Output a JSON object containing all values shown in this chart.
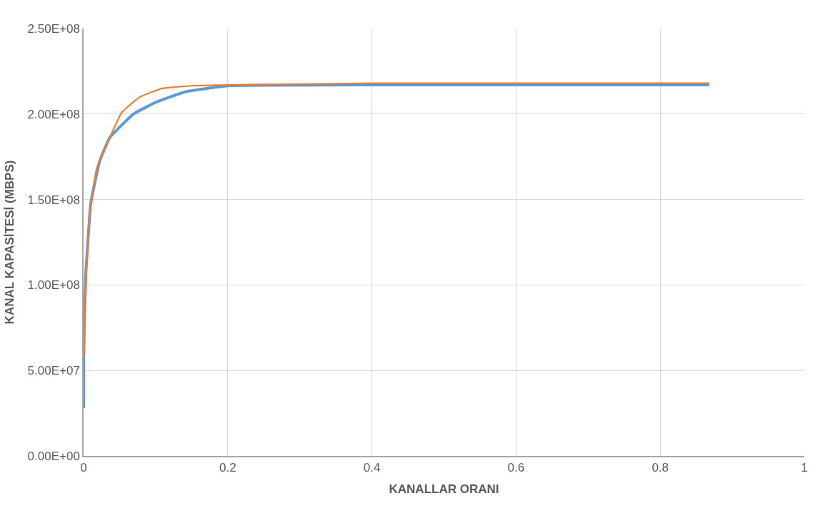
{
  "chart_data": {
    "type": "line",
    "xlabel": "KANALLAR ORANI",
    "ylabel": "KANAL KAPASİTESİ (MBPS)",
    "xlim": [
      0,
      1
    ],
    "xticks": [
      0,
      0.2,
      0.4,
      0.6,
      0.8,
      1
    ],
    "ylim": [
      0,
      250000000
    ],
    "yticks": [
      {
        "value": 0,
        "label": "0.00E+00"
      },
      {
        "value": 50000000,
        "label": "5.00E+07"
      },
      {
        "value": 100000000,
        "label": "1.00E+08"
      },
      {
        "value": 150000000,
        "label": "1.50E+08"
      },
      {
        "value": 200000000,
        "label": "2.00E+08"
      },
      {
        "value": 250000000,
        "label": "2.50E+08"
      }
    ],
    "grid": true,
    "marker": "none",
    "line_style": "solid",
    "series": [
      {
        "color": "#5b9bd5",
        "x": [
          0,
          0,
          0.003,
          0.01,
          0.022,
          0.036,
          0.069,
          0.101,
          0.141,
          0.2,
          0.4,
          0.6,
          0.868
        ],
        "values": [
          28000000,
          59000000,
          106000000,
          148000000,
          172000000,
          186000000,
          200000000,
          207000000,
          213000000,
          216500000,
          217000000,
          217000000,
          217000000
        ]
      },
      {
        "color": "#ed7d31",
        "x": [
          0.001,
          0.002,
          0.008,
          0.018,
          0.036,
          0.053,
          0.078,
          0.109,
          0.149,
          0.2,
          0.4,
          0.6,
          0.868
        ],
        "values": [
          59000000,
          90000000,
          140000000,
          168000000,
          186000000,
          201000000,
          210000000,
          215000000,
          216500000,
          217000000,
          218000000,
          218000000,
          218000000
        ]
      }
    ]
  }
}
